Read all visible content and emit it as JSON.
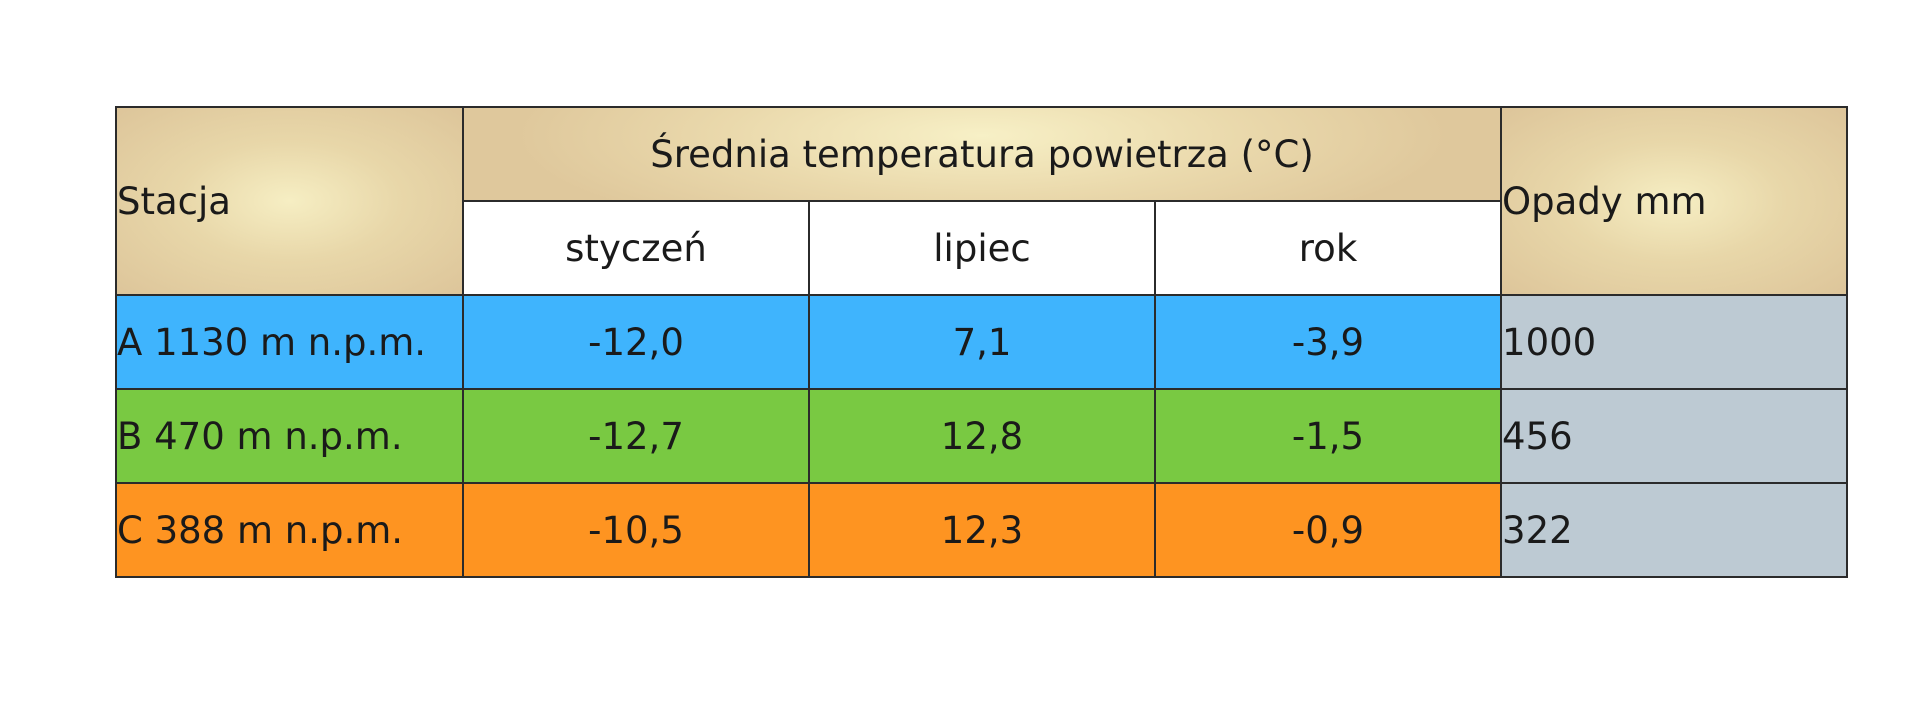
{
  "header": {
    "station": "Stacja",
    "temperature_group": "Średnia temperatura powietrza (°C)",
    "precipitation": "Opady mm",
    "months": [
      "styczeń",
      "lipiec",
      "rok"
    ]
  },
  "rows": [
    {
      "station": "A 1130 m n.p.m.",
      "january": "-12,0",
      "july": "7,1",
      "year": "-3,9",
      "precipitation": "1000",
      "color": "#3fb4fd"
    },
    {
      "station": "B 470 m n.p.m.",
      "january": "-12,7",
      "july": "12,8",
      "year": "-1,5",
      "precipitation": "456",
      "color": "#79c942"
    },
    {
      "station": "C 388 m n.p.m.",
      "january": "-10,5",
      "july": "12,3",
      "year": "-0,9",
      "precipitation": "322",
      "color": "#fe9421"
    }
  ],
  "colors": {
    "header_gold": "#e8d7a9",
    "precipitation_cells": "#bdcad3"
  }
}
